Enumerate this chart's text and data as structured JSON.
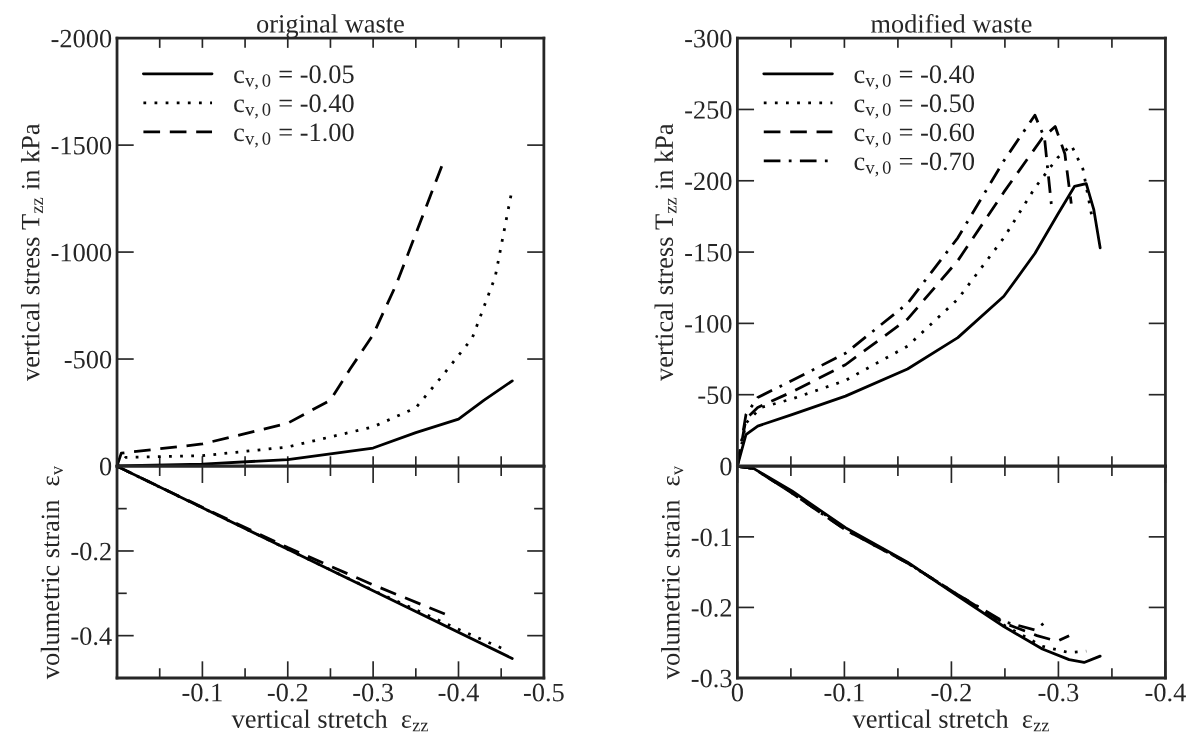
{
  "chart_data": [
    {
      "type": "line",
      "title": "original waste",
      "ylabel": "vertical stress T$_{zz}$ in kPa",
      "xlim": [
        0,
        -0.5
      ],
      "ylim": [
        0,
        -2000
      ],
      "xticks": [
        {
          "value": -0.05,
          "label": null
        },
        {
          "value": -0.1,
          "label": null
        },
        {
          "value": -0.15,
          "label": null
        },
        {
          "value": -0.2,
          "label": null
        },
        {
          "value": -0.25,
          "label": null
        },
        {
          "value": -0.3,
          "label": null
        },
        {
          "value": -0.35,
          "label": null
        },
        {
          "value": -0.4,
          "label": null
        },
        {
          "value": -0.45,
          "label": null
        }
      ],
      "yticks": [
        0,
        -500,
        -1000,
        -1500,
        -2000
      ],
      "tick_labels": "y",
      "legend": "top left",
      "grid": false,
      "series": [
        {
          "name": "c$_{v,0}$ = -0.05",
          "color": "#000000",
          "line_style": "solid",
          "x": [
            0,
            -0.1,
            -0.2,
            -0.3,
            -0.35,
            -0.4,
            -0.43,
            -0.463
          ],
          "values": [
            0,
            -9,
            -30,
            -84,
            -156,
            -219,
            -308,
            -398
          ]
        },
        {
          "name": "c$_{v,0}$ = -0.40",
          "color": "#000000",
          "line_style": "dotted",
          "x": [
            0,
            -0.01,
            -0.1,
            -0.2,
            -0.3,
            -0.35,
            -0.38,
            -0.416,
            -0.443,
            -0.463
          ],
          "values": [
            0,
            -40,
            -48,
            -89,
            -183,
            -272,
            -416,
            -597,
            -884,
            -1297
          ]
        },
        {
          "name": "c$_{v,0}$ = -1.00",
          "color": "#000000",
          "line_style": "dashed",
          "x": [
            0,
            -0.005,
            -0.1,
            -0.2,
            -0.25,
            -0.273,
            -0.3,
            -0.327,
            -0.353,
            -0.381
          ],
          "values": [
            0,
            -60,
            -103,
            -200,
            -308,
            -453,
            -614,
            -848,
            -1117,
            -1408
          ]
        }
      ]
    },
    {
      "type": "line",
      "xlabel": "vertical stretch  ε$_{zz}$",
      "ylabel": "volumetric strain  ε$_{v}$",
      "xlim": [
        0,
        -0.5
      ],
      "ylim": [
        -0.5,
        0
      ],
      "xticks": [
        {
          "value": -0.05,
          "label": null
        },
        -0.1,
        {
          "value": -0.15,
          "label": null
        },
        -0.2,
        {
          "value": -0.25,
          "label": null
        },
        -0.3,
        {
          "value": -0.35,
          "label": null
        },
        -0.4,
        {
          "value": -0.45,
          "label": null
        },
        -0.5
      ],
      "yticks": [
        {
          "value": -0.1,
          "label": null
        },
        -0.2,
        {
          "value": -0.3,
          "label": null
        },
        -0.4
      ],
      "grid": false,
      "series": [
        {
          "color": "#000000",
          "line_style": "solid",
          "x": [
            0,
            -0.1,
            -0.2,
            -0.3,
            -0.463
          ],
          "values": [
            0,
            -0.098,
            -0.196,
            -0.294,
            -0.454
          ]
        },
        {
          "color": "#000000",
          "line_style": "dotted",
          "x": [
            0,
            -0.1,
            -0.2,
            -0.3,
            -0.4,
            -0.459
          ],
          "values": [
            0,
            -0.098,
            -0.196,
            -0.293,
            -0.385,
            -0.437
          ]
        },
        {
          "color": "#000000",
          "line_style": "dashed",
          "x": [
            0,
            -0.1,
            -0.2,
            -0.3,
            -0.384
          ],
          "values": [
            0,
            -0.097,
            -0.192,
            -0.28,
            -0.349
          ]
        }
      ]
    },
    {
      "type": "line",
      "title": "modified waste",
      "ylabel": "vertical stress T$_{zz}$ in kPa",
      "xlim": [
        0,
        -0.4
      ],
      "ylim": [
        0,
        -300
      ],
      "xticks": [
        {
          "value": -0.05,
          "label": null
        },
        {
          "value": -0.1,
          "label": null
        },
        {
          "value": -0.15,
          "label": null
        },
        {
          "value": -0.2,
          "label": null
        },
        {
          "value": -0.25,
          "label": null
        },
        {
          "value": -0.3,
          "label": null
        },
        {
          "value": -0.35,
          "label": null
        }
      ],
      "yticks": [
        0,
        -50,
        -100,
        -150,
        -200,
        -250,
        -300
      ],
      "tick_labels": "y",
      "legend": "top left",
      "grid": false,
      "series": [
        {
          "name": "c$_{v,0}$ = -0.40",
          "color": "#000000",
          "line_style": "solid",
          "x": [
            0,
            -0.008,
            -0.019,
            -0.051,
            -0.101,
            -0.159,
            -0.206,
            -0.249,
            -0.278,
            -0.299,
            -0.315,
            -0.326,
            -0.333,
            -0.339
          ],
          "values": [
            0,
            -22,
            -28,
            -36,
            -49,
            -68,
            -90,
            -119,
            -149,
            -176,
            -196,
            -198,
            -180,
            -153
          ]
        },
        {
          "name": "c$_{v,0}$ = -0.50",
          "color": "#000000",
          "line_style": "dotted",
          "x": [
            0,
            -0.008,
            -0.022,
            -0.051,
            -0.101,
            -0.159,
            -0.206,
            -0.249,
            -0.278,
            -0.299,
            -0.312,
            -0.323,
            -0.331
          ],
          "values": [
            0,
            -30,
            -41,
            -47,
            -60,
            -84,
            -117,
            -160,
            -195,
            -216,
            -225,
            -208,
            -176
          ]
        },
        {
          "name": "c$_{v,0}$ = -0.60",
          "color": "#000000",
          "line_style": "dashed",
          "x": [
            0,
            -0.008,
            -0.019,
            -0.051,
            -0.101,
            -0.159,
            -0.206,
            -0.249,
            -0.285,
            -0.297,
            -0.306,
            -0.312
          ],
          "values": [
            0,
            -33,
            -41,
            -52,
            -71,
            -103,
            -144,
            -192,
            -230,
            -238,
            -219,
            -184
          ]
        },
        {
          "name": "c$_{v,0}$ = -0.70",
          "color": "#000000",
          "line_style": "dashdot",
          "x": [
            0,
            -0.008,
            -0.019,
            -0.051,
            -0.101,
            -0.159,
            -0.206,
            -0.249,
            -0.278,
            -0.287,
            -0.294
          ],
          "values": [
            0,
            -36,
            -48,
            -60,
            -79,
            -114,
            -160,
            -214,
            -246,
            -230,
            -179
          ]
        }
      ]
    },
    {
      "type": "line",
      "xlabel": "vertical stretch  ε$_{zz}$",
      "ylabel": "volumetric strain  ε$_{v}$",
      "xlim": [
        0,
        -0.4
      ],
      "ylim": [
        -0.3,
        0
      ],
      "xticks": [
        0,
        {
          "value": -0.05,
          "label": null
        },
        -0.1,
        {
          "value": -0.15,
          "label": null
        },
        -0.2,
        {
          "value": -0.25,
          "label": null
        },
        -0.3,
        {
          "value": -0.35,
          "label": null
        },
        -0.4
      ],
      "yticks": [
        -0.1,
        -0.2,
        -0.3
      ],
      "grid": false,
      "series": [
        {
          "color": "#000000",
          "line_style": "solid",
          "x": [
            0,
            -0.015,
            -0.051,
            -0.101,
            -0.159,
            -0.206,
            -0.249,
            -0.285,
            -0.31,
            -0.324,
            -0.339
          ],
          "values": [
            0,
            -0.003,
            -0.035,
            -0.087,
            -0.136,
            -0.184,
            -0.227,
            -0.259,
            -0.274,
            -0.278,
            -0.269
          ]
        },
        {
          "color": "#000000",
          "line_style": "dotted",
          "x": [
            0,
            -0.015,
            -0.051,
            -0.101,
            -0.159,
            -0.206,
            -0.249,
            -0.285,
            -0.31,
            -0.326
          ],
          "values": [
            0,
            -0.003,
            -0.037,
            -0.088,
            -0.137,
            -0.183,
            -0.225,
            -0.255,
            -0.264,
            -0.262
          ]
        },
        {
          "color": "#000000",
          "line_style": "dashed",
          "x": [
            0,
            -0.015,
            -0.051,
            -0.101,
            -0.159,
            -0.206,
            -0.249,
            -0.28,
            -0.299,
            -0.31
          ],
          "values": [
            0,
            -0.003,
            -0.038,
            -0.09,
            -0.137,
            -0.182,
            -0.222,
            -0.24,
            -0.248,
            -0.24
          ]
        },
        {
          "color": "#000000",
          "line_style": "dashdot",
          "x": [
            0,
            -0.015,
            -0.051,
            -0.101,
            -0.159,
            -0.206,
            -0.249,
            -0.278,
            -0.292
          ],
          "values": [
            0,
            -0.003,
            -0.038,
            -0.09,
            -0.137,
            -0.182,
            -0.22,
            -0.232,
            -0.216
          ]
        }
      ]
    }
  ]
}
